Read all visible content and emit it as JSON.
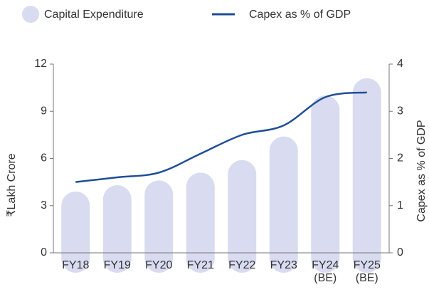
{
  "chart_data": {
    "type": "bar_line",
    "categories": [
      "FY18",
      "FY19",
      "FY20",
      "FY21",
      "FY22",
      "FY23",
      "FY24\n(BE)",
      "FY25\n(BE)"
    ],
    "series": [
      {
        "name": "Capital Expenditure",
        "color": "#d9dbf1",
        "values": [
          3.9,
          4.3,
          4.6,
          5.1,
          5.9,
          7.4,
          10,
          11.1
        ]
      },
      {
        "name": "Capex as % of GDP",
        "color": "#1f4e96",
        "axis": "y2",
        "values": [
          1.5,
          1.6,
          1.7,
          2.1,
          2.5,
          2.7,
          3.3,
          3.4
        ]
      }
    ],
    "ylabel": "₹Lakh Crore",
    "y2label": "Capex as % of GDP",
    "ylim": [
      0,
      12
    ],
    "yticks": [
      0,
      3,
      6,
      9,
      12
    ],
    "y2lim": [
      0,
      4
    ],
    "y2ticks": [
      0,
      1,
      2,
      3,
      4
    ]
  }
}
